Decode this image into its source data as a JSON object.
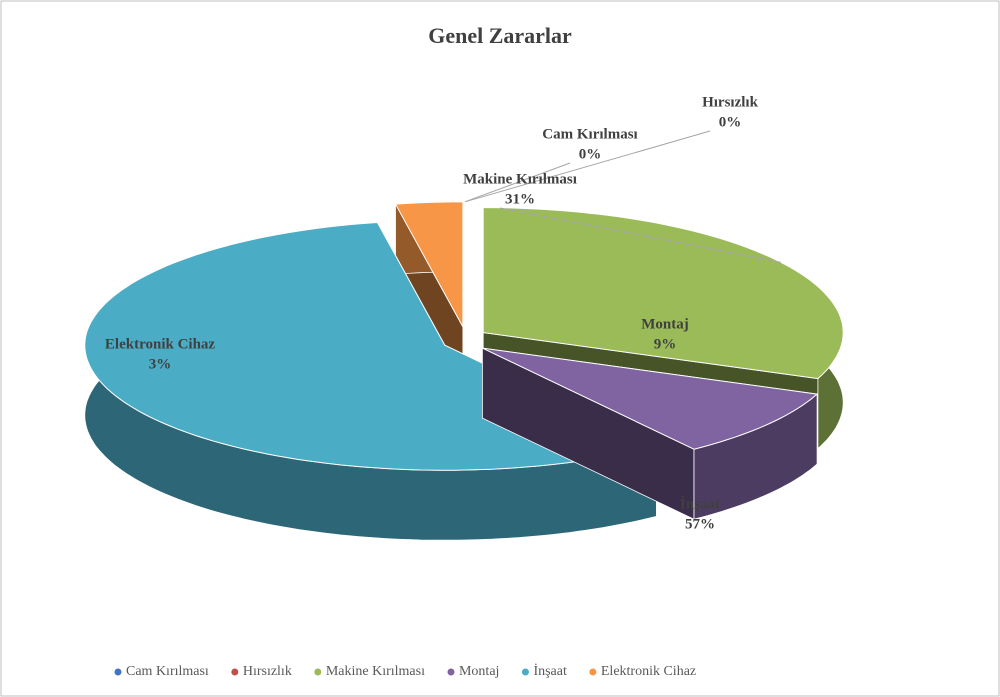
{
  "chart_data": {
    "type": "pie",
    "title": "Genel Zararlar",
    "categories": [
      "Cam Kırılması",
      "Hırsızlık",
      "Makine Kırılması",
      "Montaj",
      "İnşaat",
      "Elektronik Cihaz"
    ],
    "values": [
      0,
      0,
      31,
      9,
      57,
      3
    ],
    "value_labels": [
      "0%",
      "0%",
      "31%",
      "9%",
      "57%",
      "3%"
    ],
    "colors": [
      "#4472c4",
      "#c0504d",
      "#9bbb59",
      "#8064a2",
      "#4bacc6",
      "#f79646"
    ],
    "legend": "bottom"
  }
}
